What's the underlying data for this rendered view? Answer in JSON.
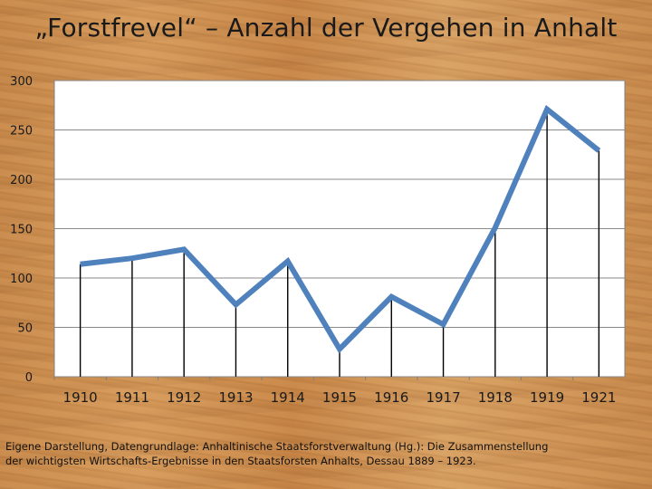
{
  "title": "„Forstfrevel“ – Anzahl der Vergehen in Anhalt",
  "source_line1": "Eigene Darstellung, Datengrundlage: Anhaltinische Staatsforstverwaltung (Hg.): Die Zusammenstellung",
  "source_line2": "der wichtigsten Wirtschafts-Ergebnisse in den Staatsforsten Anhalts, Dessau 1889 – 1923.",
  "colors": {
    "line": "#4f81bd",
    "plot_bg": "#ffffff",
    "grid": "#8a8a8a",
    "drop_lines": "#000000"
  },
  "chart_data": {
    "type": "line",
    "title": "",
    "xlabel": "",
    "ylabel": "",
    "categories": [
      "1910",
      "1911",
      "1912",
      "1913",
      "1914",
      "1915",
      "1916",
      "1917",
      "1918",
      "1919",
      "1921"
    ],
    "series": [
      {
        "values": [
          114,
          120,
          129,
          73,
          117,
          28,
          81,
          53,
          151,
          271,
          229
        ]
      }
    ],
    "ylim": [
      0,
      300
    ],
    "yticks": [
      0,
      50,
      100,
      150,
      200,
      250,
      300
    ],
    "grid": true,
    "drop_lines": true,
    "legend": "none"
  }
}
